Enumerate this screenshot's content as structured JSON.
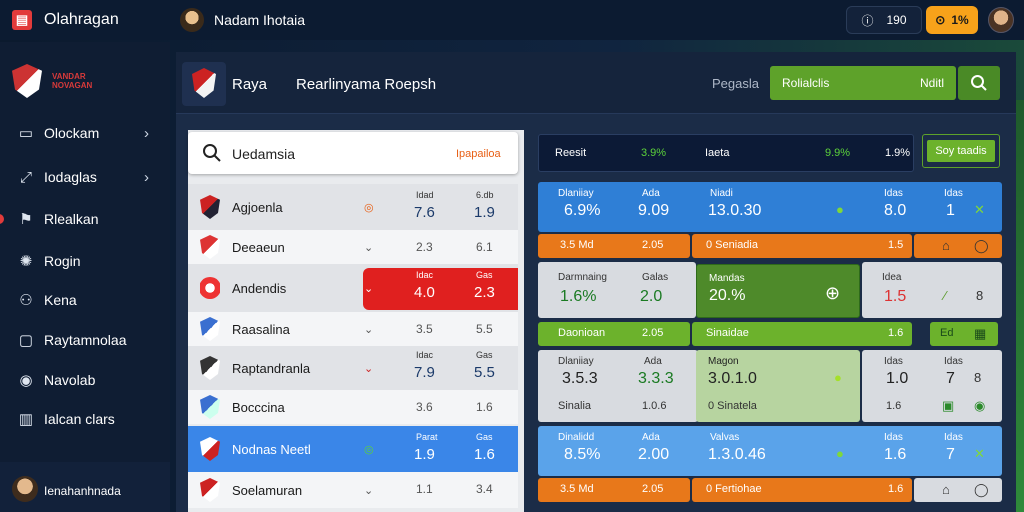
{
  "topbar": {
    "app_title": "Olahragan",
    "user_name": "Nadam Ihotaia",
    "stat_icon": "ⓘ",
    "stat_value": "190",
    "coin_icon": "⊙",
    "coin_value": "1%"
  },
  "sidebar": {
    "club_name": "VANDAR NOVAGAN",
    "items": [
      {
        "icon": "▭",
        "label": "Olockam",
        "chevron": "›"
      },
      {
        "icon": "⤢",
        "label": "Iodaglas",
        "chevron": "›"
      },
      {
        "icon": "⚑",
        "label": "Rlealkan",
        "chevron": ""
      },
      {
        "icon": "✺",
        "label": "Rogin",
        "chevron": ""
      },
      {
        "icon": "⚇",
        "label": "Kena",
        "chevron": ""
      },
      {
        "icon": "▢",
        "label": "Raytamnolaa",
        "chevron": ""
      },
      {
        "icon": "◉",
        "label": "Navolab",
        "chevron": ""
      },
      {
        "icon": "▥",
        "label": "Ialcan clars",
        "chevron": ""
      }
    ],
    "user_name": "Ienahanhnada"
  },
  "header": {
    "team": "Raya",
    "title": "Rearlinyama Roepsh",
    "label": "Pegasla",
    "bar_left": "Rolialclis",
    "bar_right": "Nditl"
  },
  "search": {
    "text": "Uedamsia",
    "tag": "Ipapailoa"
  },
  "teams": [
    {
      "name": "Agjoenla",
      "icon": "◎",
      "h1": "Idad",
      "v1": "7.6",
      "h2": "6.db",
      "v2": "1.9",
      "color": "#c22"
    },
    {
      "name": "Deeaeun",
      "icon": "⌄",
      "h1": "",
      "v1": "2.3",
      "h2": "",
      "v2": "6.1",
      "color": "#d33"
    },
    {
      "name": "Andendis",
      "icon": "⌄",
      "h1": "Idac",
      "v1": "4.0",
      "h2": "Gas",
      "v2": "2.3",
      "color": "#e33"
    },
    {
      "name": "Raasalina",
      "icon": "⌄",
      "h1": "",
      "v1": "3.5",
      "h2": "",
      "v2": "5.5",
      "color": "#3a6fd0"
    },
    {
      "name": "Raptandranla",
      "icon": "⌄",
      "h1": "Idac",
      "v1": "7.9",
      "h2": "Gas",
      "v2": "5.5",
      "color": "#333"
    },
    {
      "name": "Bocccina",
      "icon": "",
      "h1": "",
      "v1": "3.6",
      "h2": "",
      "v2": "1.6",
      "color": "#3a6fd0"
    },
    {
      "name": "Nodnas Neetl",
      "icon": "◎",
      "h1": "Parat",
      "v1": "1.9",
      "h2": "Gas",
      "v2": "1.6",
      "color": "#3a6fd0"
    },
    {
      "name": "Soelamuran",
      "icon": "⌄",
      "h1": "",
      "v1": "1.1",
      "h2": "",
      "v2": "3.4",
      "color": "#c22"
    }
  ],
  "right": {
    "top": {
      "a": "Reesit",
      "b": "3.9%",
      "c": "Iaeta",
      "d": "9.9%",
      "e": "1.9%",
      "btn": "Soy taadis"
    },
    "r1": {
      "l1": "Dlaniiay",
      "v1": "6.9%",
      "l2": "Ada",
      "v2": "9.09",
      "l3": "Niadi",
      "v3": "13.0.30",
      "l4": "Idas",
      "v4": "8.0",
      "l5": "Idas",
      "v5": "1",
      "x": "✕"
    },
    "o1": {
      "a": "3.5 Md",
      "b": "2.05",
      "c": "0 Seniadia",
      "d": "1.5"
    },
    "r2": {
      "l1": "Darmnaing",
      "v1": "1.6%",
      "l2": "Galas",
      "v2": "2.0",
      "l3": "Mandas",
      "v3": "20.%",
      "l4": "Idea",
      "v4": "1.5",
      "s": "⁄",
      "i": "8"
    },
    "g1": {
      "a": "Daonioan",
      "b": "2.05",
      "c": "Sinaidae",
      "d": "1.6",
      "e": "Ed"
    },
    "r3": {
      "l1": "Dlaniiay",
      "v1": "3.5.3",
      "l2": "Ada",
      "v2": "3.3.3",
      "l3": "Magon",
      "v3": "3.0.1.0",
      "l4": "Idas",
      "v4": "1.0",
      "l5": "Idas",
      "v5": "7",
      "l6": "Sinalia",
      "v6": "1.0.6",
      "l7": "0 Sinatela",
      "v7": "1.6"
    },
    "r4": {
      "l1": "Dinalidd",
      "v1": "8.5%",
      "l2": "Ada",
      "v2": "2.00",
      "l3": "Valvas",
      "v3": "1.3.0.46",
      "l4": "Idas",
      "v4": "1.6",
      "l5": "Idas",
      "v5": "7",
      "x": "✕"
    },
    "o2": {
      "a": "3.5 Md",
      "b": "2.05",
      "c": "0 Fertiohae",
      "d": "1.6"
    }
  }
}
